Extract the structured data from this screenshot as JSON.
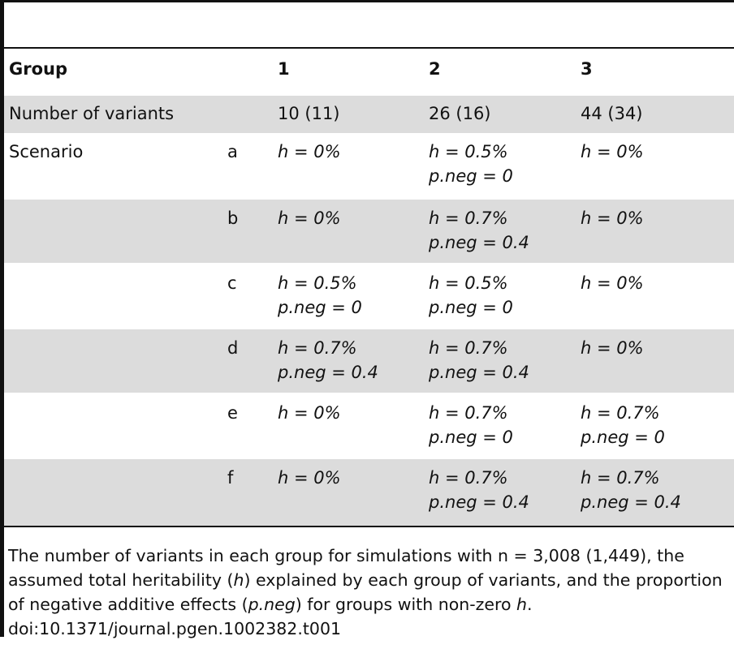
{
  "table": {
    "header": {
      "group_label": "Group",
      "cols": [
        "1",
        "2",
        "3"
      ]
    },
    "variants_row": {
      "label": "Number of variants",
      "values": [
        "10 (11)",
        "26 (16)",
        "44 (34)"
      ]
    },
    "scenario_label": "Scenario",
    "scenarios": [
      {
        "id": "a",
        "g1": [
          "h = 0%"
        ],
        "g2": [
          "h = 0.5%",
          "p.neg = 0"
        ],
        "g3": [
          "h = 0%"
        ]
      },
      {
        "id": "b",
        "g1": [
          "h = 0%"
        ],
        "g2": [
          "h = 0.7%",
          "p.neg = 0.4"
        ],
        "g3": [
          "h = 0%"
        ]
      },
      {
        "id": "c",
        "g1": [
          "h = 0.5%",
          "p.neg = 0"
        ],
        "g2": [
          "h = 0.5%",
          "p.neg = 0"
        ],
        "g3": [
          "h = 0%"
        ]
      },
      {
        "id": "d",
        "g1": [
          "h = 0.7%",
          "p.neg = 0.4"
        ],
        "g2": [
          "h = 0.7%",
          "p.neg = 0.4"
        ],
        "g3": [
          "h = 0%"
        ]
      },
      {
        "id": "e",
        "g1": [
          "h = 0%"
        ],
        "g2": [
          "h = 0.7%",
          "p.neg = 0"
        ],
        "g3": [
          "h = 0.7%",
          "p.neg = 0"
        ]
      },
      {
        "id": "f",
        "g1": [
          "h = 0%"
        ],
        "g2": [
          "h = 0.7%",
          "p.neg = 0.4"
        ],
        "g3": [
          "h = 0.7%",
          "p.neg = 0.4"
        ]
      }
    ]
  },
  "footnote": {
    "text_1": "The number of variants in each group for simulations with n = 3,008 (1,449), the assumed total heritability (",
    "h_symbol": "h",
    "text_2": ") explained by each group of variants, and the proportion of negative additive effects (",
    "pneg_symbol": "p.neg",
    "text_3": ") for groups with non-zero ",
    "h_symbol_2": "h",
    "text_4": ".",
    "doi": "doi:10.1371/journal.pgen.1002382.t001"
  }
}
